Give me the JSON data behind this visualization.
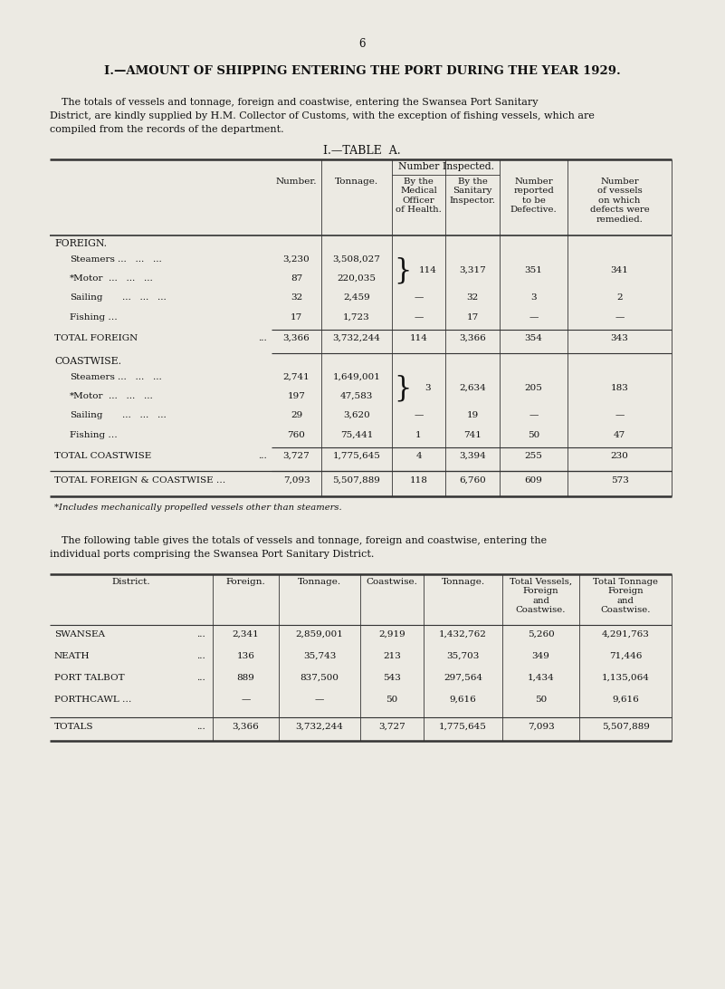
{
  "page_number": "6",
  "title": "I.—AMOUNT OF SHIPPING ENTERING THE PORT DURING THE YEAR 1929.",
  "intro_line1": "The totals of vessels and tonnage, foreign and coastwise, entering the Swansea Port Sanitary",
  "intro_line2": "District, are kindly supplied by H.M. Collector of Customs, with the exception of fishing vessels, which are",
  "intro_line3": "compiled from the records of the department.",
  "table_a_title": "I.—TABLE  A.",
  "col_headers": [
    "Number.",
    "Tonnage.",
    "By the\nMedical\nOfficer\nof Health.",
    "By the\nSanitary\nInspector.",
    "Number\nreported\nto be\nDefective.",
    "Number\nof vessels\non which\ndefects were\nremedied."
  ],
  "number_inspected_header": "Number Inspected.",
  "footnote": "*Includes mechanically propelled vessels other than steamers.",
  "inter_line1": "The following table gives the totals of vessels and tonnage, foreign and coastwise, entering the",
  "inter_line2": "individual ports comprising the Swansea Port Sanitary District.",
  "bg_color": "#eceae3",
  "text_color": "#111111",
  "line_color": "#333333"
}
